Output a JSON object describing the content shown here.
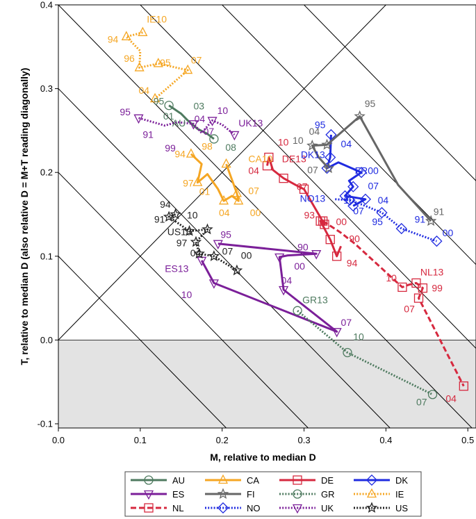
{
  "chart_data": {
    "type": "line",
    "title": "",
    "xlabel": "M, relative to median D",
    "ylabel": "T, relative to median D (also relative D = M+T reading diagonally)",
    "xlim": [
      0.0,
      0.51
    ],
    "ylim": [
      -0.105,
      0.4
    ],
    "xticks": [
      "0.0",
      "0.1",
      "0.2",
      "0.3",
      "0.4",
      "0.5"
    ],
    "yticks": [
      "-0.1",
      "0.0",
      "0.1",
      "0.2",
      "0.3",
      "0.4"
    ],
    "diagonals_M_plus_T": [
      0.1,
      0.2,
      0.3,
      0.4,
      0.5,
      0.6,
      0.7
    ],
    "shaded_region": "T < 0",
    "legend_position": "bottom, 6 columns",
    "series": [
      {
        "name": "AU",
        "color": "#4e7a5f",
        "dash": "solid",
        "marker": "circle",
        "points": [
          {
            "label": "95",
            "x": 0.135,
            "y": 0.28
          },
          {
            "label": "",
            "x": 0.15,
            "y": 0.27
          },
          {
            "label": "",
            "x": 0.158,
            "y": 0.262
          },
          {
            "label": "",
            "x": 0.17,
            "y": 0.252
          },
          {
            "label": "",
            "x": 0.182,
            "y": 0.246
          },
          {
            "label": "08",
            "x": 0.19,
            "y": 0.24
          }
        ],
        "point_labels": [
          {
            "text": "95",
            "x": 0.116,
            "y": 0.281
          },
          {
            "text": "03",
            "x": 0.165,
            "y": 0.275
          },
          {
            "text": "01",
            "x": 0.128,
            "y": 0.263
          },
          {
            "text": "AU",
            "x": 0.139,
            "y": 0.255
          },
          {
            "text": "08",
            "x": 0.204,
            "y": 0.226
          }
        ]
      },
      {
        "name": "CA",
        "color": "#f5a623",
        "dash": "solid",
        "marker": "triangle",
        "points": [
          {
            "label": "94",
            "x": 0.162,
            "y": 0.222
          },
          {
            "label": "",
            "x": 0.175,
            "y": 0.21
          },
          {
            "label": "97",
            "x": 0.17,
            "y": 0.188
          },
          {
            "label": "",
            "x": 0.182,
            "y": 0.198
          },
          {
            "label": "",
            "x": 0.195,
            "y": 0.18
          },
          {
            "label": "04",
            "x": 0.202,
            "y": 0.166
          },
          {
            "label": "",
            "x": 0.212,
            "y": 0.172
          },
          {
            "label": "00",
            "x": 0.22,
            "y": 0.166
          },
          {
            "label": "07",
            "x": 0.218,
            "y": 0.175
          },
          {
            "label": "CA10",
            "x": 0.205,
            "y": 0.21
          }
        ],
        "point_labels": [
          {
            "text": "94",
            "x": 0.142,
            "y": 0.218
          },
          {
            "text": "98",
            "x": 0.175,
            "y": 0.227
          },
          {
            "text": "97",
            "x": 0.152,
            "y": 0.183
          },
          {
            "text": "01",
            "x": 0.172,
            "y": 0.173
          },
          {
            "text": "04",
            "x": 0.196,
            "y": 0.148
          },
          {
            "text": "00",
            "x": 0.234,
            "y": 0.148
          },
          {
            "text": "07",
            "x": 0.232,
            "y": 0.174
          },
          {
            "text": "CA10",
            "x": 0.232,
            "y": 0.212
          }
        ]
      },
      {
        "name": "DE",
        "color": "#d6293f",
        "dash": "solid",
        "marker": "square",
        "points": [
          {
            "label": "04",
            "x": 0.255,
            "y": 0.208
          },
          {
            "label": "DE13",
            "x": 0.257,
            "y": 0.218
          },
          {
            "label": "",
            "x": 0.262,
            "y": 0.203
          },
          {
            "label": "07",
            "x": 0.275,
            "y": 0.193
          },
          {
            "label": "",
            "x": 0.29,
            "y": 0.185
          },
          {
            "label": "10",
            "x": 0.3,
            "y": 0.18
          },
          {
            "label": "00",
            "x": 0.325,
            "y": 0.138
          },
          {
            "label": "93",
            "x": 0.32,
            "y": 0.142
          },
          {
            "label": "90",
            "x": 0.332,
            "y": 0.12
          },
          {
            "label": "94",
            "x": 0.34,
            "y": 0.1
          },
          {
            "label": "",
            "x": 0.345,
            "y": 0.112
          }
        ],
        "point_labels": [
          {
            "text": "10",
            "x": 0.268,
            "y": 0.232
          },
          {
            "text": "DE13",
            "x": 0.273,
            "y": 0.212
          },
          {
            "text": "04",
            "x": 0.232,
            "y": 0.198
          },
          {
            "text": "07",
            "x": 0.291,
            "y": 0.179
          },
          {
            "text": "93",
            "x": 0.3,
            "y": 0.145
          },
          {
            "text": "00",
            "x": 0.339,
            "y": 0.137
          },
          {
            "text": "90",
            "x": 0.355,
            "y": 0.117
          },
          {
            "text": "94",
            "x": 0.352,
            "y": 0.088
          }
        ]
      },
      {
        "name": "DK",
        "color": "#1f2be0",
        "dash": "solid",
        "marker": "diamond",
        "points": [
          {
            "label": "95",
            "x": 0.333,
            "y": 0.245
          },
          {
            "label": "DK13",
            "x": 0.332,
            "y": 0.218
          },
          {
            "label": "04",
            "x": 0.328,
            "y": 0.205
          },
          {
            "label": "",
            "x": 0.342,
            "y": 0.212
          },
          {
            "label": "FR00",
            "x": 0.37,
            "y": 0.2
          },
          {
            "label": "",
            "x": 0.355,
            "y": 0.19
          },
          {
            "label": "07",
            "x": 0.36,
            "y": 0.183
          },
          {
            "label": "NO13",
            "x": 0.35,
            "y": 0.172
          },
          {
            "label": "04",
            "x": 0.375,
            "y": 0.168
          },
          {
            "label": "07",
            "x": 0.36,
            "y": 0.16
          }
        ],
        "point_labels": [
          {
            "text": "95",
            "x": 0.313,
            "y": 0.253
          },
          {
            "text": "04",
            "x": 0.345,
            "y": 0.23
          },
          {
            "text": "DK13",
            "x": 0.296,
            "y": 0.217
          },
          {
            "text": "FR00",
            "x": 0.362,
            "y": 0.198
          },
          {
            "text": "07",
            "x": 0.378,
            "y": 0.18
          },
          {
            "text": "04",
            "x": 0.39,
            "y": 0.163
          },
          {
            "text": "07",
            "x": 0.36,
            "y": 0.15
          },
          {
            "text": "NO13",
            "x": 0.295,
            "y": 0.165
          }
        ]
      },
      {
        "name": "ES",
        "color": "#7b1f99",
        "dash": "solid",
        "marker": "triangle-down",
        "points": [
          {
            "label": "95",
            "x": 0.195,
            "y": 0.115
          },
          {
            "label": "90",
            "x": 0.315,
            "y": 0.103
          },
          {
            "label": "",
            "x": 0.28,
            "y": 0.101
          },
          {
            "label": "00",
            "x": 0.27,
            "y": 0.099
          },
          {
            "label": "04",
            "x": 0.275,
            "y": 0.06
          },
          {
            "label": "07",
            "x": 0.34,
            "y": 0.01
          },
          {
            "label": "10",
            "x": 0.19,
            "y": 0.068
          },
          {
            "label": "ES13",
            "x": 0.175,
            "y": 0.095
          }
        ],
        "point_labels": [
          {
            "text": "95",
            "x": 0.198,
            "y": 0.122
          },
          {
            "text": "90",
            "x": 0.292,
            "y": 0.107
          },
          {
            "text": "00",
            "x": 0.288,
            "y": 0.084
          },
          {
            "text": "04",
            "x": 0.272,
            "y": 0.067
          },
          {
            "text": "07",
            "x": 0.345,
            "y": 0.017
          },
          {
            "text": "10",
            "x": 0.15,
            "y": 0.05
          },
          {
            "text": "ES13",
            "x": 0.13,
            "y": 0.081
          }
        ]
      },
      {
        "name": "FI",
        "color": "#666666",
        "dash": "solid",
        "marker": "star",
        "points": [
          {
            "label": "91",
            "x": 0.455,
            "y": 0.142
          },
          {
            "label": "",
            "x": 0.415,
            "y": 0.185
          },
          {
            "label": "95",
            "x": 0.368,
            "y": 0.267
          },
          {
            "label": "04",
            "x": 0.328,
            "y": 0.233
          },
          {
            "label": "10",
            "x": 0.31,
            "y": 0.232
          },
          {
            "label": "",
            "x": 0.318,
            "y": 0.218
          },
          {
            "label": "07",
            "x": 0.33,
            "y": 0.205
          }
        ],
        "point_labels": [
          {
            "text": "95",
            "x": 0.374,
            "y": 0.278
          },
          {
            "text": "10",
            "x": 0.286,
            "y": 0.234
          },
          {
            "text": "04",
            "x": 0.306,
            "y": 0.245
          },
          {
            "text": "07",
            "x": 0.304,
            "y": 0.199
          },
          {
            "text": "91",
            "x": 0.458,
            "y": 0.149
          }
        ]
      },
      {
        "name": "GR",
        "color": "#4e7a5f",
        "dash": "dotted",
        "marker": "circle",
        "points": [
          {
            "label": "GR13",
            "x": 0.292,
            "y": 0.035
          },
          {
            "label": "10",
            "x": 0.353,
            "y": -0.015
          },
          {
            "label": "07",
            "x": 0.457,
            "y": -0.065
          }
        ],
        "point_labels": [
          {
            "text": "GR13",
            "x": 0.298,
            "y": 0.044
          },
          {
            "text": "10",
            "x": 0.36,
            "y": 0.0
          },
          {
            "text": "07",
            "x": 0.437,
            "y": -0.078
          }
        ]
      },
      {
        "name": "IE",
        "color": "#f5a623",
        "dash": "dotted",
        "marker": "triangle",
        "points": [
          {
            "label": "IE10",
            "x": 0.103,
            "y": 0.367
          },
          {
            "label": "94",
            "x": 0.083,
            "y": 0.362
          },
          {
            "label": "",
            "x": 0.1,
            "y": 0.345
          },
          {
            "label": "96",
            "x": 0.099,
            "y": 0.325
          },
          {
            "label": "",
            "x": 0.113,
            "y": 0.328
          },
          {
            "label": "95",
            "x": 0.122,
            "y": 0.33
          },
          {
            "label": "07",
            "x": 0.158,
            "y": 0.322
          },
          {
            "label": "04",
            "x": 0.118,
            "y": 0.288
          }
        ],
        "point_labels": [
          {
            "text": "IE10",
            "x": 0.108,
            "y": 0.379
          },
          {
            "text": "94",
            "x": 0.06,
            "y": 0.355
          },
          {
            "text": "96",
            "x": 0.08,
            "y": 0.332
          },
          {
            "text": "95",
            "x": 0.124,
            "y": 0.327
          },
          {
            "text": "07",
            "x": 0.162,
            "y": 0.33
          },
          {
            "text": "04",
            "x": 0.098,
            "y": 0.294
          }
        ]
      },
      {
        "name": "NL",
        "color": "#d6293f",
        "dash": "dashed",
        "marker": "square",
        "points": [
          {
            "label": "93",
            "x": 0.323,
            "y": 0.142
          },
          {
            "label": "",
            "x": 0.345,
            "y": 0.128
          },
          {
            "label": "",
            "x": 0.362,
            "y": 0.115
          },
          {
            "label": "10",
            "x": 0.42,
            "y": 0.063
          },
          {
            "label": "",
            "x": 0.428,
            "y": 0.066
          },
          {
            "label": "NL13",
            "x": 0.437,
            "y": 0.068
          },
          {
            "label": "99",
            "x": 0.445,
            "y": 0.062
          },
          {
            "label": "07",
            "x": 0.44,
            "y": 0.05
          },
          {
            "label": "04",
            "x": 0.495,
            "y": -0.055
          }
        ],
        "point_labels": [
          {
            "text": "10",
            "x": 0.4,
            "y": 0.07
          },
          {
            "text": "NL13",
            "x": 0.442,
            "y": 0.077
          },
          {
            "text": "99",
            "x": 0.456,
            "y": 0.058
          },
          {
            "text": "07",
            "x": 0.422,
            "y": 0.033
          },
          {
            "text": "04",
            "x": 0.473,
            "y": -0.074
          }
        ]
      },
      {
        "name": "NO",
        "color": "#1f2be0",
        "dash": "dotted",
        "marker": "diamond",
        "points": [
          {
            "label": "",
            "x": 0.338,
            "y": 0.168
          },
          {
            "label": "10",
            "x": 0.356,
            "y": 0.167
          },
          {
            "label": "",
            "x": 0.375,
            "y": 0.16
          },
          {
            "label": "95",
            "x": 0.395,
            "y": 0.152
          },
          {
            "label": "91",
            "x": 0.419,
            "y": 0.133
          },
          {
            "label": "00",
            "x": 0.462,
            "y": 0.118
          }
        ],
        "point_labels": [
          {
            "text": "10",
            "x": 0.348,
            "y": 0.163
          },
          {
            "text": "95",
            "x": 0.383,
            "y": 0.137
          },
          {
            "text": "91",
            "x": 0.435,
            "y": 0.14
          },
          {
            "text": "00",
            "x": 0.469,
            "y": 0.124
          }
        ]
      },
      {
        "name": "UK",
        "color": "#7b1f99",
        "dash": "dotted",
        "marker": "triangle-down",
        "points": [
          {
            "label": "95",
            "x": 0.098,
            "y": 0.265
          },
          {
            "label": "",
            "x": 0.13,
            "y": 0.256
          },
          {
            "label": "",
            "x": 0.145,
            "y": 0.26
          },
          {
            "label": "04",
            "x": 0.165,
            "y": 0.258
          },
          {
            "label": "",
            "x": 0.175,
            "y": 0.247
          },
          {
            "label": "10",
            "x": 0.188,
            "y": 0.262
          },
          {
            "label": "",
            "x": 0.2,
            "y": 0.257
          },
          {
            "label": "UK13",
            "x": 0.215,
            "y": 0.245
          }
        ],
        "point_labels": [
          {
            "text": "95",
            "x": 0.075,
            "y": 0.268
          },
          {
            "text": "91",
            "x": 0.103,
            "y": 0.241
          },
          {
            "text": "99",
            "x": 0.13,
            "y": 0.225
          },
          {
            "text": "04",
            "x": 0.166,
            "y": 0.26
          },
          {
            "text": "07",
            "x": 0.177,
            "y": 0.245
          },
          {
            "text": "10",
            "x": 0.194,
            "y": 0.27
          },
          {
            "text": "UK13",
            "x": 0.22,
            "y": 0.255
          }
        ]
      },
      {
        "name": "US",
        "color": "#222222",
        "dash": "dotted",
        "marker": "star",
        "points": [
          {
            "label": "94",
            "x": 0.143,
            "y": 0.15
          },
          {
            "label": "91",
            "x": 0.135,
            "y": 0.147
          },
          {
            "label": "US13",
            "x": 0.16,
            "y": 0.13
          },
          {
            "label": "10",
            "x": 0.182,
            "y": 0.132
          },
          {
            "label": "97",
            "x": 0.168,
            "y": 0.117
          },
          {
            "label": "04",
            "x": 0.172,
            "y": 0.103
          },
          {
            "label": "07",
            "x": 0.19,
            "y": 0.1
          },
          {
            "label": "00",
            "x": 0.218,
            "y": 0.083
          }
        ],
        "point_labels": [
          {
            "text": "94",
            "x": 0.124,
            "y": 0.158
          },
          {
            "text": "91",
            "x": 0.117,
            "y": 0.14
          },
          {
            "text": "10",
            "x": 0.157,
            "y": 0.145
          },
          {
            "text": "US13",
            "x": 0.133,
            "y": 0.125
          },
          {
            "text": "97",
            "x": 0.144,
            "y": 0.112
          },
          {
            "text": "04",
            "x": 0.161,
            "y": 0.1
          },
          {
            "text": "07",
            "x": 0.2,
            "y": 0.102
          },
          {
            "text": "00",
            "x": 0.223,
            "y": 0.097
          }
        ]
      }
    ]
  }
}
